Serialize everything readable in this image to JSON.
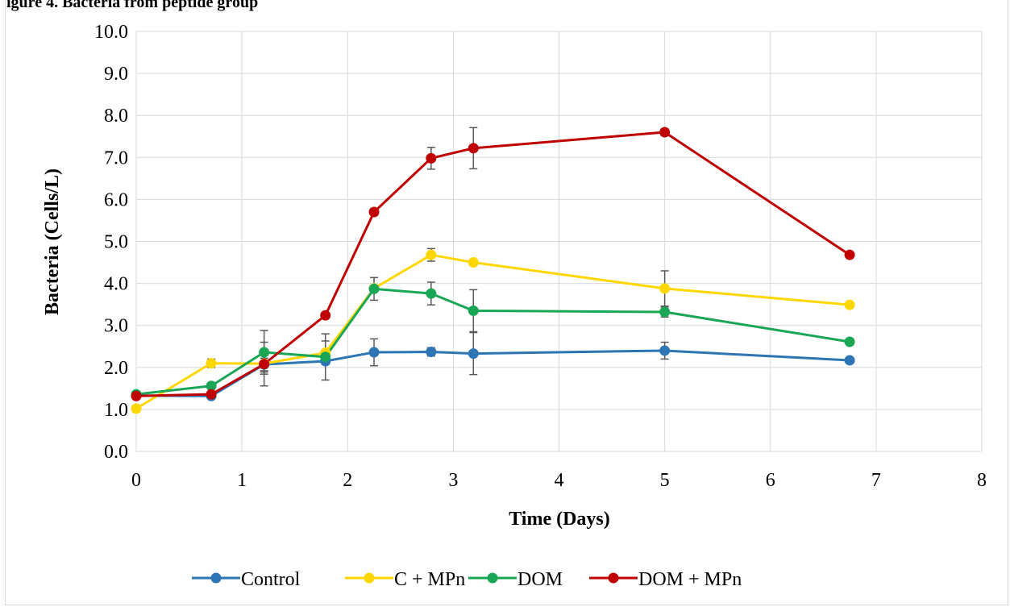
{
  "caption_fragment": "igure 4. Bacteria from peptide group",
  "chart_data": {
    "type": "line",
    "title": "",
    "xlabel": "Time (Days)",
    "ylabel": "Bacteria (Cells/L)",
    "xlim": [
      0,
      8
    ],
    "ylim": [
      0,
      10
    ],
    "x_ticks": [
      "0",
      "1",
      "2",
      "3",
      "4",
      "5",
      "6",
      "7",
      "8"
    ],
    "y_ticks": [
      "0.0",
      "1.0",
      "2.0",
      "3.0",
      "4.0",
      "5.0",
      "6.0",
      "7.0",
      "8.0",
      "9.0",
      "10.0"
    ],
    "grid": true,
    "legend_position": "bottom",
    "series": [
      {
        "name": "Control",
        "color": "#2e75b6",
        "x": [
          0,
          0.71,
          1.21,
          1.79,
          2.25,
          2.79,
          3.19,
          5.0,
          6.75
        ],
        "y": [
          1.33,
          1.32,
          2.07,
          2.15,
          2.36,
          2.37,
          2.33,
          2.4,
          2.17
        ],
        "err": [
          0,
          0.05,
          0.15,
          0.05,
          0.32,
          0.1,
          0.5,
          0.2,
          0
        ]
      },
      {
        "name": "C + MPn",
        "color": "#ffd700",
        "x": [
          0,
          0.71,
          1.21,
          1.79,
          2.25,
          2.79,
          3.19,
          5.0,
          6.75
        ],
        "y": [
          1.02,
          2.1,
          2.09,
          2.35,
          3.88,
          4.68,
          4.5,
          3.88,
          3.49
        ],
        "err": [
          0,
          0.1,
          0.2,
          0.28,
          0,
          0.15,
          0,
          0.42,
          0
        ]
      },
      {
        "name": "DOM",
        "color": "#19a655",
        "x": [
          0,
          0.71,
          1.21,
          1.79,
          2.25,
          2.79,
          3.19,
          5.0,
          6.75
        ],
        "y": [
          1.36,
          1.56,
          2.36,
          2.25,
          3.87,
          3.76,
          3.35,
          3.32,
          2.61
        ],
        "err": [
          0,
          0.05,
          0.52,
          0.55,
          0.27,
          0.27,
          0.5,
          0.12,
          0
        ]
      },
      {
        "name": "DOM + MPn",
        "color": "#c00000",
        "x": [
          0,
          0.71,
          1.21,
          1.79,
          2.25,
          2.79,
          3.19,
          5.0,
          6.75
        ],
        "y": [
          1.32,
          1.36,
          2.08,
          3.24,
          5.7,
          6.98,
          7.22,
          7.6,
          4.68
        ],
        "err": [
          0,
          0.05,
          0.52,
          0,
          0,
          0.26,
          0.49,
          0.08,
          0
        ]
      }
    ]
  }
}
